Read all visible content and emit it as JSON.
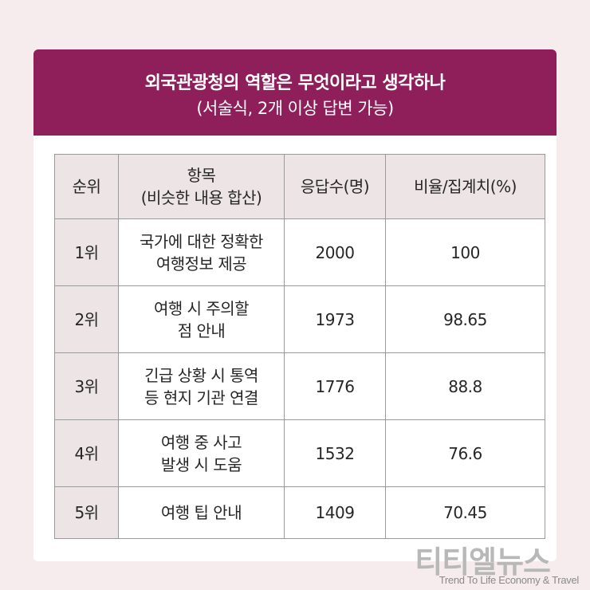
{
  "header": {
    "title": "외국관광청의 역할은 무엇이라고 생각하나",
    "subtitle": "(서술식, 2개 이상 답변 가능)"
  },
  "table": {
    "columns": [
      "순위",
      "항목\n(비슷한 내용 합산)",
      "응답수(명)",
      "비율/집계치(%)"
    ],
    "rows": [
      {
        "rank": "1위",
        "item": "국가에 대한 정확한\n여행정보 제공",
        "count": "2000",
        "ratio": "100"
      },
      {
        "rank": "2위",
        "item": "여행 시 주의할\n점 안내",
        "count": "1973",
        "ratio": "98.65"
      },
      {
        "rank": "3위",
        "item": "긴급 상황 시 통역\n등 현지 기관 연결",
        "count": "1776",
        "ratio": "88.8"
      },
      {
        "rank": "4위",
        "item": "여행 중 사고\n발생 시 도움",
        "count": "1532",
        "ratio": "76.6"
      },
      {
        "rank": "5위",
        "item": "여행 팁 안내",
        "count": "1409",
        "ratio": "70.45"
      }
    ]
  },
  "logo": {
    "korean": "티티엘뉴스",
    "tagline": "Trend To Life Economy & Travel"
  },
  "colors": {
    "header_bg": "#8e1f5a",
    "page_bg": "#f6ecee",
    "table_header_bg": "#ede4e6"
  }
}
